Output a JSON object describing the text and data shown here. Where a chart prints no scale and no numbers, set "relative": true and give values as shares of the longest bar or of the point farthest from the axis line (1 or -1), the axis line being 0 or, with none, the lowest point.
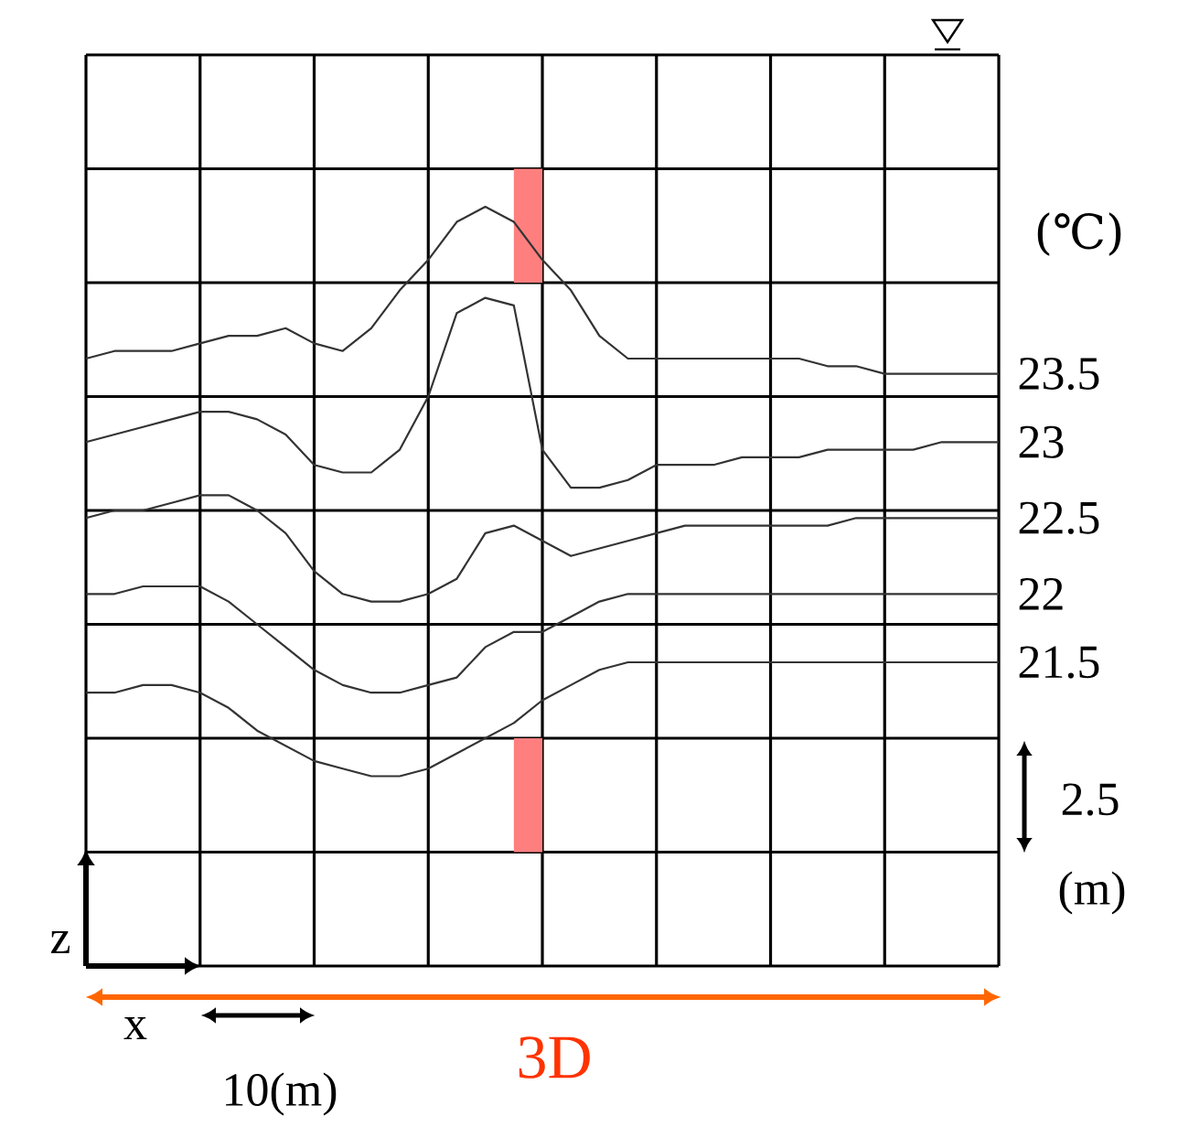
{
  "chart_data": {
    "type": "line",
    "relative": true,
    "categories": [
      null,
      null,
      null,
      null,
      null,
      null,
      null,
      null,
      null,
      null,
      null,
      null,
      null,
      null,
      null,
      null,
      null,
      null,
      null,
      null,
      null,
      null,
      null,
      null,
      null,
      null,
      null,
      null,
      null,
      null,
      null,
      null,
      null
    ],
    "grid": true,
    "marker": "none",
    "line_style": "solid",
    "series": [
      {
        "name": "23.5",
        "color": "#333333",
        "values": [
          0.8,
          0.81,
          0.81,
          0.81,
          0.82,
          0.83,
          0.83,
          0.84,
          0.82,
          0.81,
          0.84,
          0.89,
          0.93,
          0.98,
          1.0,
          0.98,
          0.93,
          0.89,
          0.83,
          0.8,
          0.8,
          0.8,
          0.8,
          0.8,
          0.8,
          0.8,
          0.79,
          0.79,
          0.78,
          0.78,
          0.78,
          0.78,
          0.78
        ]
      },
      {
        "name": "23",
        "color": "#333333",
        "values": [
          0.69,
          0.7,
          0.71,
          0.72,
          0.73,
          0.73,
          0.72,
          0.7,
          0.66,
          0.65,
          0.65,
          0.68,
          0.75,
          0.86,
          0.88,
          0.87,
          0.68,
          0.63,
          0.63,
          0.64,
          0.66,
          0.66,
          0.66,
          0.67,
          0.67,
          0.67,
          0.68,
          0.68,
          0.68,
          0.68,
          0.69,
          0.69,
          0.69
        ]
      },
      {
        "name": "22.5",
        "color": "#333333",
        "values": [
          0.59,
          0.6,
          0.6,
          0.61,
          0.62,
          0.62,
          0.6,
          0.57,
          0.52,
          0.49,
          0.48,
          0.48,
          0.49,
          0.51,
          0.57,
          0.58,
          0.56,
          0.54,
          0.55,
          0.56,
          0.57,
          0.58,
          0.58,
          0.58,
          0.58,
          0.58,
          0.58,
          0.59,
          0.59,
          0.59,
          0.59,
          0.59,
          0.59
        ]
      },
      {
        "name": "22",
        "color": "#333333",
        "values": [
          0.49,
          0.49,
          0.5,
          0.5,
          0.5,
          0.48,
          0.45,
          0.42,
          0.39,
          0.37,
          0.36,
          0.36,
          0.37,
          0.38,
          0.42,
          0.44,
          0.44,
          0.46,
          0.48,
          0.49,
          0.49,
          0.49,
          0.49,
          0.49,
          0.49,
          0.49,
          0.49,
          0.49,
          0.49,
          0.49,
          0.49,
          0.49,
          0.49
        ]
      },
      {
        "name": "21.5",
        "color": "#333333",
        "values": [
          0.36,
          0.36,
          0.37,
          0.37,
          0.36,
          0.34,
          0.31,
          0.29,
          0.27,
          0.26,
          0.25,
          0.25,
          0.26,
          0.28,
          0.3,
          0.32,
          0.35,
          0.37,
          0.39,
          0.4,
          0.4,
          0.4,
          0.4,
          0.4,
          0.4,
          0.4,
          0.4,
          0.4,
          0.4,
          0.4,
          0.4,
          0.4,
          0.4
        ]
      }
    ],
    "annotations": [
      "(℃)",
      "2.5",
      "(m)",
      "z",
      "x",
      "10(m)",
      "3D"
    ]
  }
}
